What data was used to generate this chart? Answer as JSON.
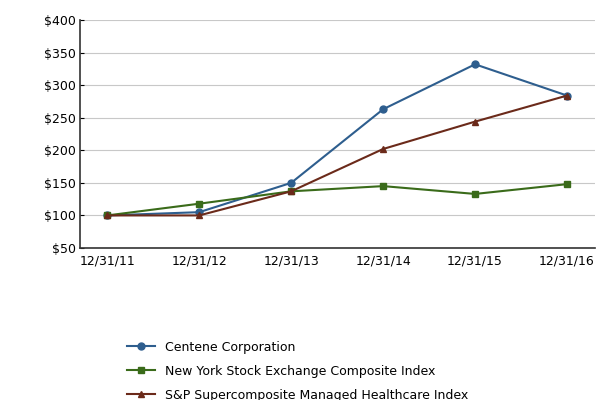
{
  "x_labels": [
    "12/31/11",
    "12/31/12",
    "12/31/13",
    "12/31/14",
    "12/31/15",
    "12/31/16"
  ],
  "centene": [
    100,
    105,
    150,
    263,
    332,
    284
  ],
  "nyse": [
    100,
    118,
    137,
    145,
    133,
    148
  ],
  "sp": [
    100,
    100,
    137,
    202,
    244,
    284
  ],
  "centene_color": "#2E5E8E",
  "nyse_color": "#3A6B1A",
  "sp_color": "#6B2A1A",
  "centene_label": "Centene Corporation",
  "nyse_label": "New York Stock Exchange Composite Index",
  "sp_label": "S&P Supercomposite Managed Healthcare Index",
  "ylim": [
    50,
    400
  ],
  "yticks": [
    50,
    100,
    150,
    200,
    250,
    300,
    350,
    400
  ],
  "background_color": "#ffffff",
  "grid_color": "#c8c8c8",
  "legend_fontsize": 9,
  "tick_fontsize": 9,
  "axis_color": "#333333"
}
